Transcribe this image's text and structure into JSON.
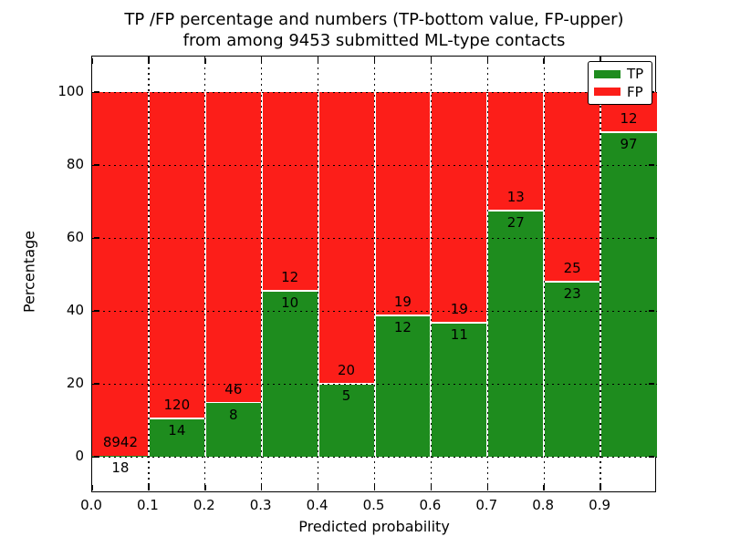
{
  "chart_data": {
    "type": "bar",
    "stacked": true,
    "title_line1": "TP /FP percentage and numbers (TP-bottom value, FP-upper)",
    "title_line2": "from among 9453 submitted ML-type contacts",
    "xlabel": "Predicted probability",
    "ylabel": "Percentage",
    "x_tick_labels": [
      "0.0",
      "0.1",
      "0.2",
      "0.3",
      "0.4",
      "0.5",
      "0.6",
      "0.7",
      "0.8",
      "0.9"
    ],
    "y_tick_values": [
      0,
      20,
      40,
      60,
      80,
      100
    ],
    "ylim": [
      -10,
      110
    ],
    "xlim": [
      0,
      1.0
    ],
    "bin_width": 0.1,
    "grid": "dotted",
    "categories": [
      "0.0-0.1",
      "0.1-0.2",
      "0.2-0.3",
      "0.3-0.4",
      "0.4-0.5",
      "0.5-0.6",
      "0.6-0.7",
      "0.7-0.8",
      "0.8-0.9",
      "0.9-1.0"
    ],
    "series": [
      {
        "name": "TP",
        "color": "#1e8c1e",
        "counts": [
          18,
          14,
          8,
          10,
          5,
          12,
          11,
          27,
          23,
          97
        ]
      },
      {
        "name": "FP",
        "color": "#fc1e19",
        "counts": [
          8942,
          120,
          46,
          12,
          20,
          19,
          19,
          13,
          25,
          12
        ]
      }
    ],
    "tp_percent": [
      0.2,
      10.4,
      14.8,
      45.5,
      20.0,
      38.7,
      36.7,
      67.5,
      47.9,
      89.0
    ],
    "legend": {
      "position": "upper right",
      "entries": [
        {
          "label": "TP",
          "color": "#1e8c1e"
        },
        {
          "label": "FP",
          "color": "#fc1e19"
        }
      ]
    }
  }
}
